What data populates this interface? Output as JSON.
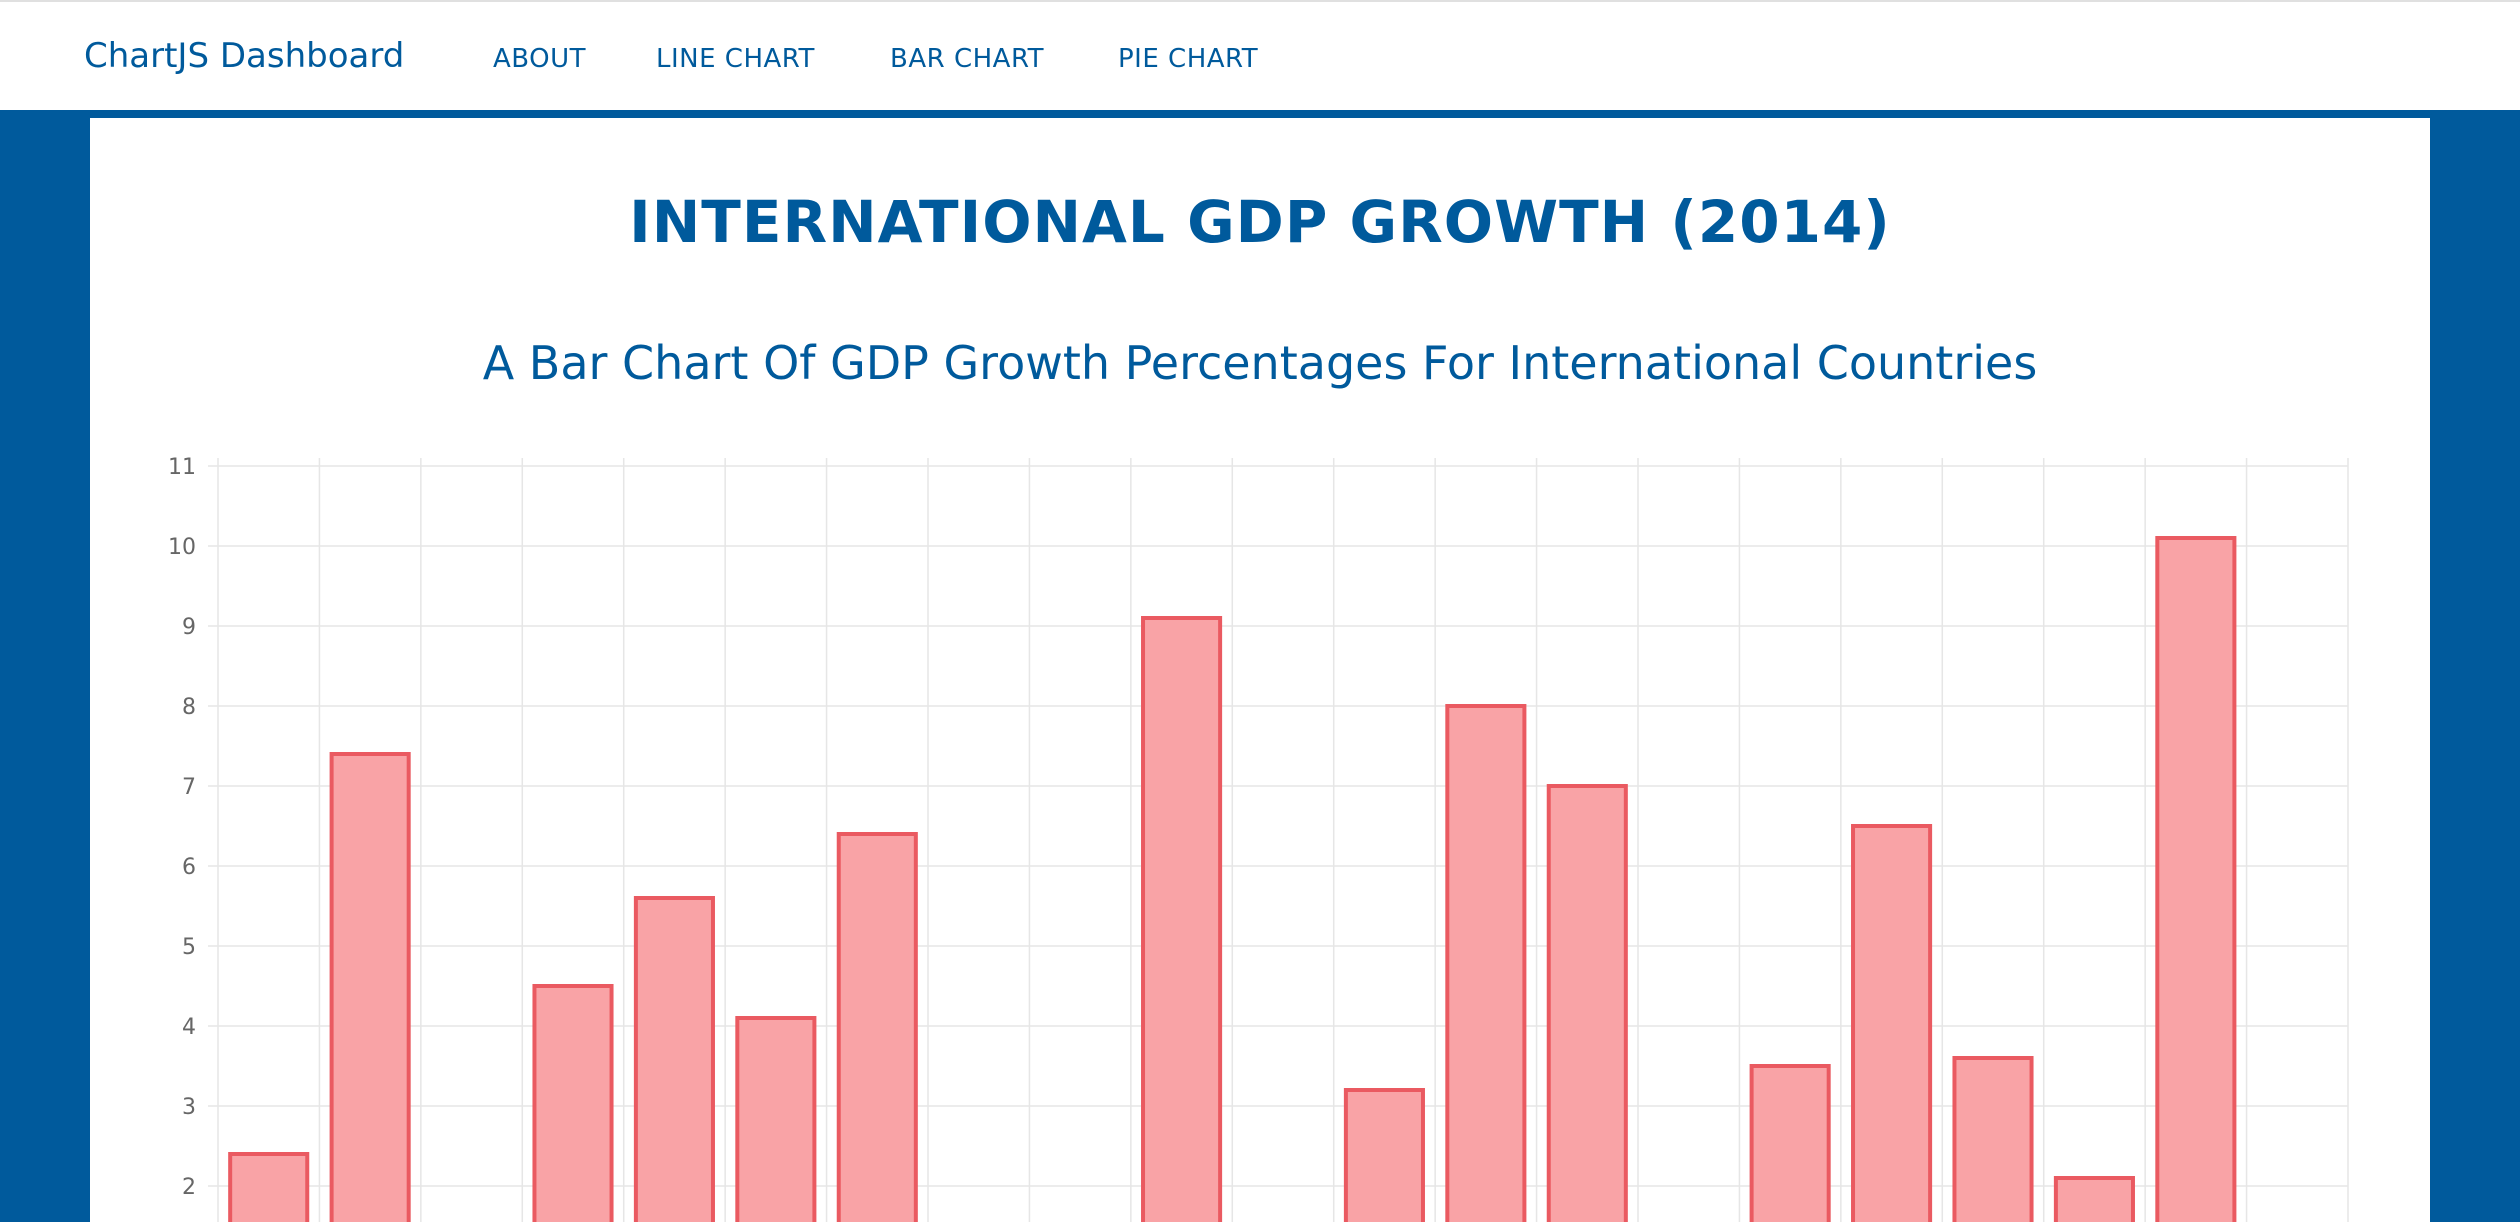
{
  "navbar": {
    "brand": "ChartJS Dashboard",
    "items": [
      {
        "label": "ABOUT"
      },
      {
        "label": "LINE CHART"
      },
      {
        "label": "BAR CHART"
      },
      {
        "label": "PIE CHART"
      }
    ]
  },
  "page": {
    "title": "INTERNATIONAL GDP GROWTH (2014)",
    "subtitle": "A Bar Chart Of GDP Growth Percentages For International Countries"
  },
  "colors": {
    "primary": "#005a9c",
    "bar_fill": "#f9a3a6",
    "bar_border": "#ea5a61",
    "grid": "#e6e6e6"
  },
  "chart_data": {
    "type": "bar",
    "title": "",
    "xlabel": "",
    "ylabel": "",
    "categories": [
      "",
      "",
      "",
      "",
      "",
      "",
      "",
      "",
      "",
      "",
      "",
      "",
      "",
      "",
      "",
      "",
      "",
      "",
      "",
      "",
      ""
    ],
    "values": [
      2.4,
      7.4,
      null,
      4.5,
      5.6,
      4.1,
      6.4,
      null,
      null,
      9.1,
      null,
      3.2,
      8.0,
      7.0,
      null,
      3.5,
      6.5,
      3.6,
      2.1,
      10.1,
      null
    ],
    "y_ticks": [
      "2",
      "3",
      "4",
      "5",
      "6",
      "7",
      "8",
      "9",
      "10",
      "11"
    ],
    "ylim_visible": [
      2,
      11
    ],
    "grid": true,
    "legend": "none"
  }
}
